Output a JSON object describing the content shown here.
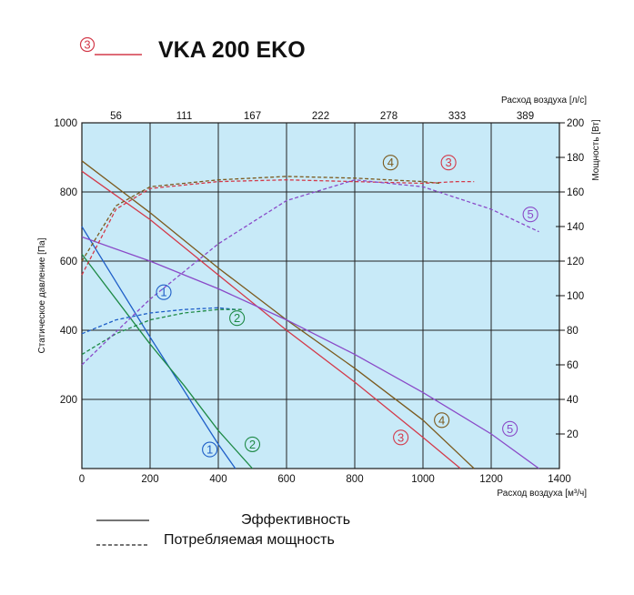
{
  "chart_data": {
    "type": "line",
    "title": "VKA 200 EKO",
    "title_marker": "3",
    "title_marker_color": "#d33a4a",
    "plot_bg": "#c8eaf8",
    "grid": true,
    "x_bottom": {
      "label": "Расход воздуха [м³/ч]",
      "lim": [
        0,
        1400
      ],
      "ticks": [
        0,
        200,
        400,
        600,
        800,
        1000,
        1200,
        1400
      ]
    },
    "x_top": {
      "label": "Расход воздуха [л/с]",
      "ticks": [
        "56",
        "111",
        "167",
        "222",
        "278",
        "333",
        "389"
      ]
    },
    "y_left": {
      "label": "Статическое давление [Па]",
      "lim": [
        0,
        1000
      ],
      "ticks": [
        0,
        200,
        400,
        600,
        800,
        1000
      ]
    },
    "y_right": {
      "label": "Мощность [Вт]",
      "lim": [
        0,
        200
      ],
      "ticks": [
        20,
        40,
        60,
        80,
        100,
        120,
        140,
        160,
        180,
        200
      ]
    },
    "series": [
      {
        "marker": "1",
        "kind": "pressure",
        "color": "#1f5fc8",
        "x": [
          0,
          100,
          200,
          300,
          400,
          450
        ],
        "y": [
          700,
          540,
          380,
          225,
          70,
          0
        ],
        "label_at": [
          375,
          55
        ]
      },
      {
        "marker": "2",
        "kind": "pressure",
        "color": "#1e8a46",
        "x": [
          0,
          100,
          200,
          300,
          400,
          500
        ],
        "y": [
          620,
          490,
          360,
          240,
          110,
          0
        ],
        "label_at": [
          500,
          70
        ]
      },
      {
        "marker": "3",
        "kind": "pressure",
        "color": "#d33a4a",
        "x": [
          0,
          200,
          400,
          600,
          800,
          1000,
          1110
        ],
        "y": [
          860,
          720,
          560,
          400,
          250,
          90,
          0
        ],
        "label_at": [
          935,
          90
        ]
      },
      {
        "marker": "4",
        "kind": "pressure",
        "color": "#7b5a1e",
        "x": [
          0,
          200,
          400,
          600,
          800,
          1000,
          1150
        ],
        "y": [
          890,
          740,
          580,
          430,
          290,
          140,
          0
        ],
        "label_at": [
          1055,
          140
        ]
      },
      {
        "marker": "5",
        "kind": "pressure",
        "color": "#8a4ac8",
        "x": [
          0,
          200,
          400,
          600,
          800,
          1000,
          1200,
          1340
        ],
        "y": [
          670,
          600,
          520,
          430,
          330,
          220,
          100,
          0
        ],
        "label_at": [
          1255,
          115
        ]
      },
      {
        "marker": "1",
        "kind": "power",
        "color": "#1f5fc8",
        "x": [
          0,
          100,
          200,
          300,
          400,
          450
        ],
        "y": [
          78,
          86,
          90,
          92,
          93,
          92
        ],
        "label_at": [
          240,
          102
        ]
      },
      {
        "marker": "2",
        "kind": "power",
        "color": "#1e8a46",
        "x": [
          0,
          100,
          200,
          300,
          400,
          470
        ],
        "y": [
          66,
          78,
          86,
          90,
          92,
          92
        ],
        "label_at": [
          455,
          87
        ]
      },
      {
        "marker": "3",
        "kind": "power",
        "color": "#d33a4a",
        "x": [
          0,
          100,
          200,
          400,
          600,
          800,
          1000,
          1100,
          1150
        ],
        "y": [
          112,
          150,
          162,
          166,
          167,
          166,
          165,
          166,
          166
        ],
        "label_at": [
          1075,
          177
        ]
      },
      {
        "marker": "4",
        "kind": "power",
        "color": "#7b5a1e",
        "x": [
          0,
          100,
          200,
          400,
          600,
          800,
          1000,
          1050
        ],
        "y": [
          120,
          152,
          163,
          167,
          169,
          168,
          166,
          165
        ],
        "label_at": [
          905,
          177
        ]
      },
      {
        "marker": "5",
        "kind": "power",
        "color": "#8a4ac8",
        "x": [
          0,
          200,
          400,
          600,
          800,
          1000,
          1200,
          1340
        ],
        "y": [
          60,
          98,
          130,
          155,
          167,
          163,
          150,
          137
        ],
        "label_at": [
          1315,
          147
        ]
      }
    ],
    "legend": {
      "solid": "Эффективность",
      "dashed": "Потребляемая мощность"
    }
  }
}
